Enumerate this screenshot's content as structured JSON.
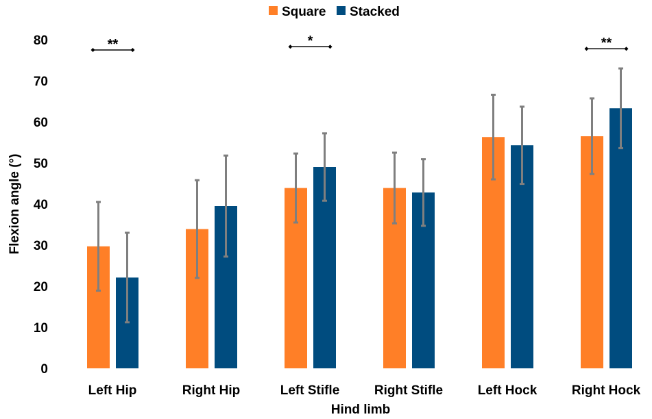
{
  "chart_data": {
    "type": "bar",
    "xlabel": "Hind limb",
    "ylabel": "Flexion angle (°)",
    "ylim": [
      0,
      80
    ],
    "yticks": [
      0,
      10,
      20,
      30,
      40,
      50,
      60,
      70,
      80
    ],
    "grid": false,
    "legend_position": "top-center",
    "categories": [
      "Left Hip",
      "Right Hip",
      "Left Stifle",
      "Right Stifle",
      "Left Hock",
      "Right Hock"
    ],
    "series": [
      {
        "name": "Square",
        "color": "#FF7F27",
        "values": [
          29.7,
          33.9,
          43.9,
          43.9,
          56.3,
          56.5
        ],
        "error": [
          10.8,
          11.9,
          8.4,
          8.6,
          10.3,
          9.2
        ]
      },
      {
        "name": "Stacked",
        "color": "#004C7F",
        "values": [
          22.1,
          39.5,
          49.0,
          42.8,
          54.3,
          63.3
        ],
        "error": [
          10.9,
          12.3,
          8.2,
          8.1,
          9.4,
          9.7
        ]
      }
    ],
    "error_bar_color": "#7F7F7F",
    "significance": [
      {
        "category": "Left Hip",
        "label": "**",
        "y": 77.5
      },
      {
        "category": "Left Stifle",
        "label": "*",
        "y": 78.3
      },
      {
        "category": "Right Hock",
        "label": "**",
        "y": 77.8
      }
    ]
  }
}
